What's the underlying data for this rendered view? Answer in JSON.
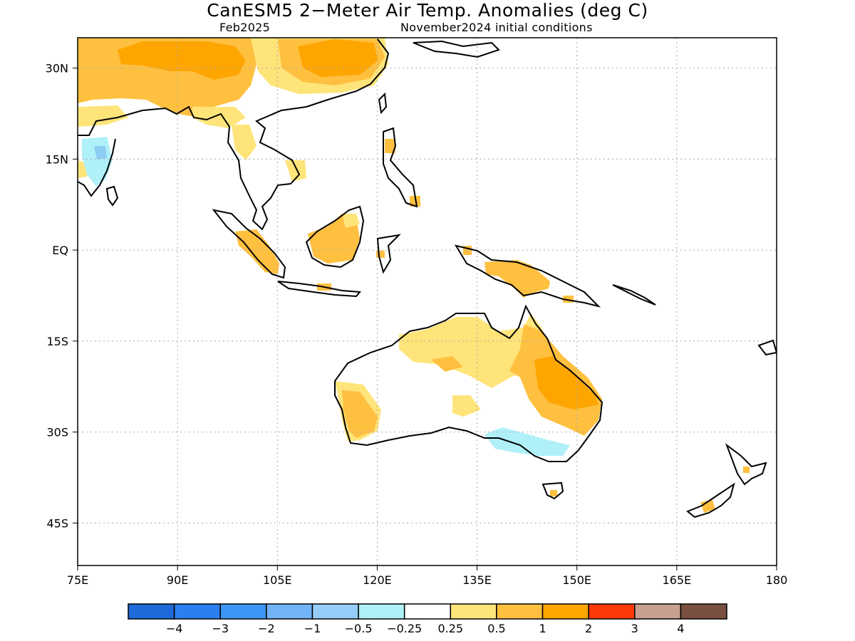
{
  "title": "CanESM5 2−Meter Air Temp. Anomalies (deg C)",
  "subtitle_left": "Feb2025",
  "subtitle_right": "November2024 initial conditions",
  "map": {
    "lon_range": [
      75,
      180
    ],
    "lat_range": [
      -52,
      35
    ],
    "lat_labels": [
      {
        "lat": 30,
        "label": "30N"
      },
      {
        "lat": 15,
        "label": "15N"
      },
      {
        "lat": 0,
        "label": "EQ"
      },
      {
        "lat": -15,
        "label": "15S"
      },
      {
        "lat": -30,
        "label": "30S"
      },
      {
        "lat": -45,
        "label": "45S"
      }
    ],
    "lon_labels": [
      {
        "lon": 75,
        "label": "75E"
      },
      {
        "lon": 90,
        "label": "90E"
      },
      {
        "lon": 105,
        "label": "105E"
      },
      {
        "lon": 120,
        "label": "120E"
      },
      {
        "lon": 135,
        "label": "135E"
      },
      {
        "lon": 150,
        "label": "150E"
      },
      {
        "lon": 165,
        "label": "165E"
      },
      {
        "lon": 180,
        "label": "180"
      }
    ],
    "grid": true,
    "colors": {
      "land": "#ffffff",
      "coast": "#000000",
      "grid": "#aaaaaa"
    }
  },
  "anomaly_regions": [
    {
      "name": "tibet-india",
      "level": "0.5-1",
      "color": "#ffc040"
    },
    {
      "name": "tibet-core",
      "level": "1-2",
      "color": "#ffa500"
    },
    {
      "name": "east-china",
      "level": "1-2",
      "color": "#ffa500"
    },
    {
      "name": "south-asia-belt",
      "level": "0.25-0.5",
      "color": "#ffe47a"
    },
    {
      "name": "india-cool",
      "level": "-0.5 to -0.25",
      "color": "#b0f0f8"
    },
    {
      "name": "india-cooler",
      "level": "-1 to -0.5",
      "color": "#8ccef4"
    },
    {
      "name": "borneo-warm",
      "level": "0.5-1",
      "color": "#ffc040"
    },
    {
      "name": "sumatra-warm",
      "level": "0.5-1",
      "color": "#ffc040"
    },
    {
      "name": "new-guinea-warm",
      "level": "0.5-1",
      "color": "#ffc040"
    },
    {
      "name": "north-australia",
      "level": "0.25-0.5",
      "color": "#ffe47a"
    },
    {
      "name": "east-australia",
      "level": "0.5-1",
      "color": "#ffc040"
    },
    {
      "name": "queensland-core",
      "level": "1-2",
      "color": "#ffa500"
    },
    {
      "name": "west-australia",
      "level": "0.5-1",
      "color": "#ffc040"
    },
    {
      "name": "south-australia-cool",
      "level": "-0.5 to -0.25",
      "color": "#b0f0f8"
    }
  ],
  "colorbar": {
    "colors": [
      "#1e6ad8",
      "#2b7ff0",
      "#3c96f5",
      "#72b4f8",
      "#96cdf8",
      "#b0f0f8",
      "#ffffff",
      "#ffe47a",
      "#ffc040",
      "#ffa500",
      "#ff3a0a",
      "#c8a090",
      "#7a5040"
    ],
    "labels": [
      "−4",
      "−3",
      "−2",
      "−1",
      "−0.5",
      "−0.25",
      "0.25",
      "0.5",
      "1",
      "2",
      "3",
      "4"
    ]
  }
}
